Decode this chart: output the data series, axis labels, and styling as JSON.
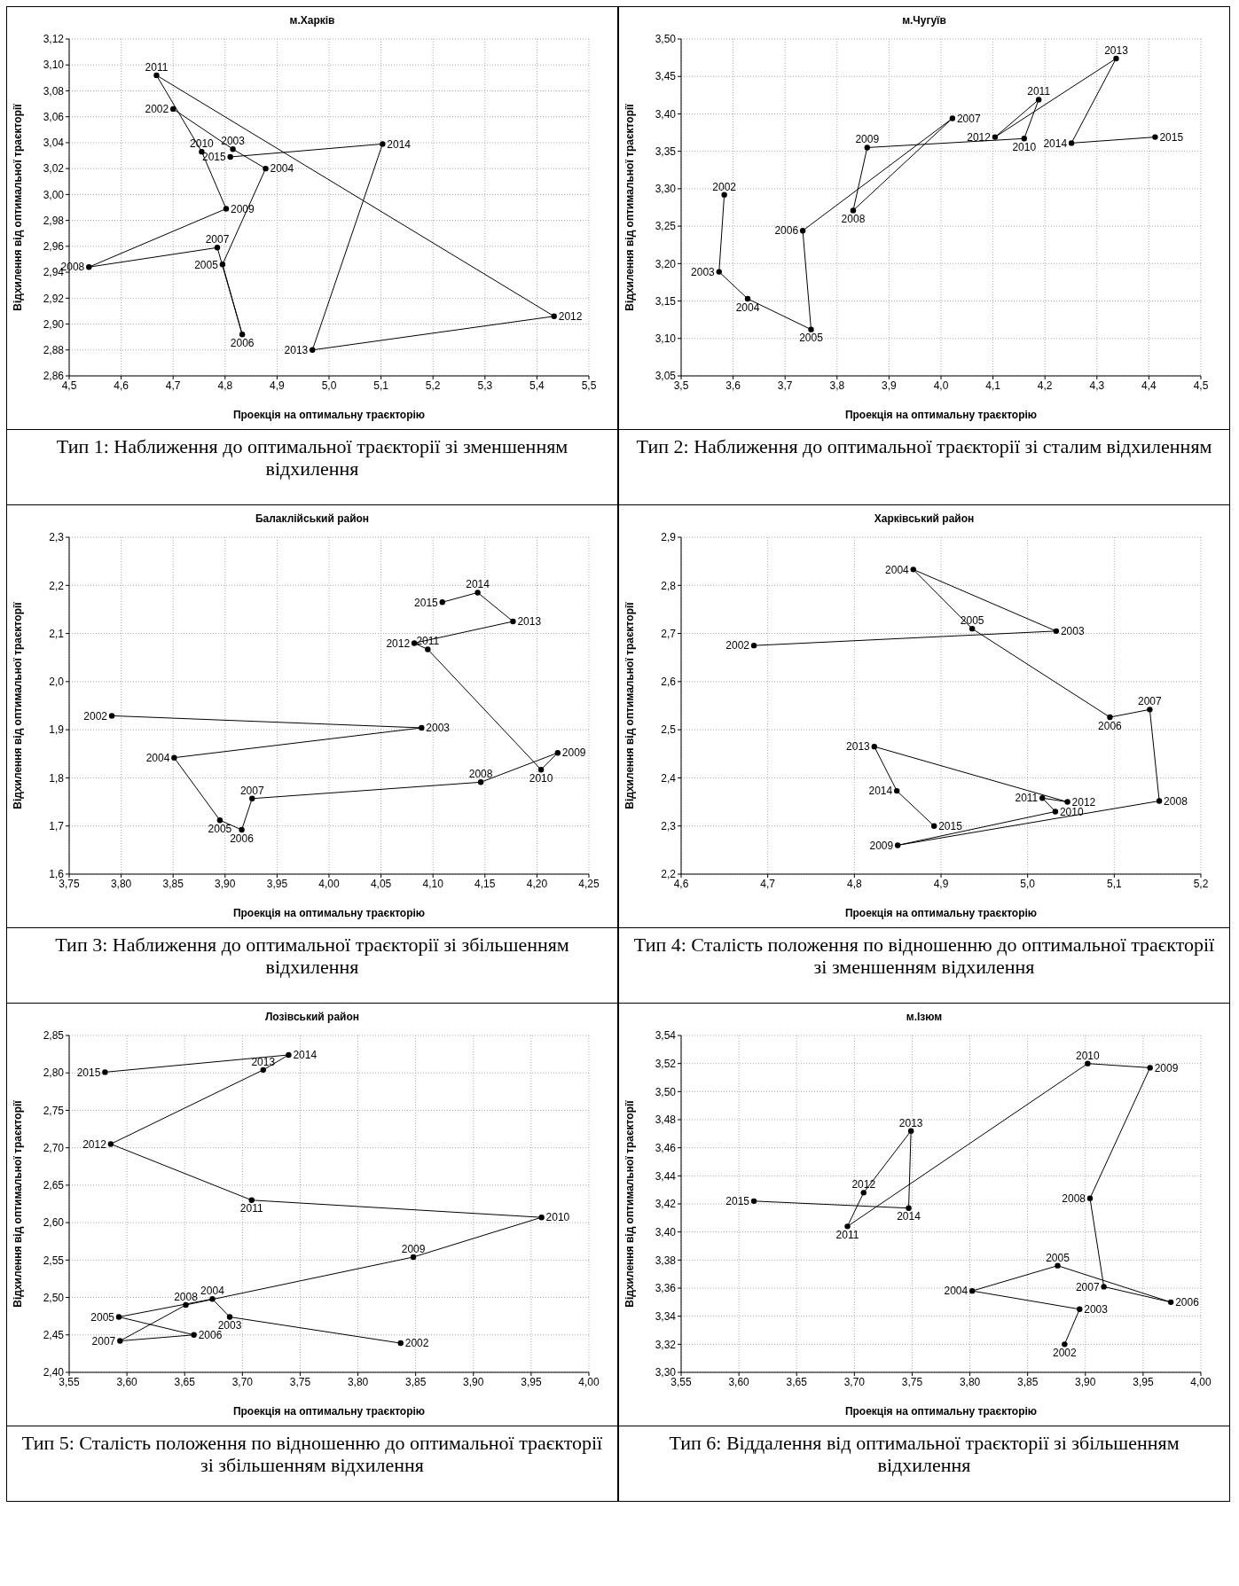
{
  "chart_data": [
    {
      "type": "line",
      "title": "м.Харків",
      "xlabel": "Проекція на оптимальну траєкторію",
      "ylabel": "Відхилення від оптимальної траєкторії",
      "grid": true,
      "marker": "circle",
      "x": [
        4.7,
        4.815,
        4.878,
        4.795,
        4.833,
        4.785,
        4.538,
        4.802,
        4.755,
        4.668,
        5.433,
        4.968,
        5.103,
        4.81
      ],
      "series": [
        {
          "color": "#000000",
          "values": [
            3.066,
            3.035,
            3.02,
            2.946,
            2.892,
            2.959,
            2.944,
            2.989,
            3.033,
            3.092,
            2.906,
            2.88,
            3.039,
            3.029
          ]
        }
      ],
      "xlim": [
        4.5,
        5.5
      ],
      "xticks": [
        {
          "value": 4.5,
          "label": "4,5"
        },
        {
          "value": 4.6,
          "label": "4,6"
        },
        {
          "value": 4.7,
          "label": "4,7"
        },
        {
          "value": 4.8,
          "label": "4,8"
        },
        {
          "value": 4.9,
          "label": "4,9"
        },
        {
          "value": 5.0,
          "label": "5,0"
        },
        {
          "value": 5.1,
          "label": "5,1"
        },
        {
          "value": 5.2,
          "label": "5,2"
        },
        {
          "value": 5.3,
          "label": "5,3"
        },
        {
          "value": 5.4,
          "label": "5,4"
        },
        {
          "value": 5.5,
          "label": "5,5"
        }
      ],
      "ylim": [
        2.86,
        3.12
      ],
      "yticks": [
        {
          "value": 2.86,
          "label": "2,86"
        },
        {
          "value": 2.88,
          "label": "2,88"
        },
        {
          "value": 2.9,
          "label": "2,90"
        },
        {
          "value": 2.92,
          "label": "2,92"
        },
        {
          "value": 2.94,
          "label": "2,94"
        },
        {
          "value": 2.96,
          "label": "2,96"
        },
        {
          "value": 2.98,
          "label": "2,98"
        },
        {
          "value": 3.0,
          "label": "3,00"
        },
        {
          "value": 3.02,
          "label": "3,02"
        },
        {
          "value": 3.04,
          "label": "3,04"
        },
        {
          "value": 3.06,
          "label": "3,06"
        },
        {
          "value": 3.08,
          "label": "3,08"
        },
        {
          "value": 3.1,
          "label": "3,10"
        },
        {
          "value": 3.12,
          "label": "3,12"
        }
      ],
      "annotations": [
        {
          "text": "2002",
          "x": 4.7,
          "y": 3.066
        },
        {
          "text": "2003",
          "x": 4.815,
          "y": 3.035
        },
        {
          "text": "2004",
          "x": 4.878,
          "y": 3.02
        },
        {
          "text": "2005",
          "x": 4.795,
          "y": 2.946
        },
        {
          "text": "2006",
          "x": 4.833,
          "y": 2.892
        },
        {
          "text": "2007",
          "x": 4.785,
          "y": 2.959
        },
        {
          "text": "2008",
          "x": 4.538,
          "y": 2.944
        },
        {
          "text": "2009",
          "x": 4.802,
          "y": 2.989
        },
        {
          "text": "2010",
          "x": 4.755,
          "y": 3.033
        },
        {
          "text": "2011",
          "x": 4.668,
          "y": 3.092
        },
        {
          "text": "2012",
          "x": 5.433,
          "y": 2.906
        },
        {
          "text": "2013",
          "x": 4.968,
          "y": 2.88
        },
        {
          "text": "2014",
          "x": 5.103,
          "y": 3.039
        },
        {
          "text": "2015",
          "x": 4.81,
          "y": 3.029
        },
        "Тип 1: Наближення до оптимальної траєкторії зі зменшенням відхилення"
      ]
    },
    {
      "type": "line",
      "title": "м.Чугуїв",
      "xlabel": "Проекція на оптимальну траєкторію",
      "ylabel": "Відхилення від оптимальної траєкторії",
      "grid": true,
      "marker": "circle",
      "x": [
        3.583,
        3.573,
        3.628,
        3.75,
        3.734,
        4.022,
        3.831,
        3.858,
        4.16,
        4.188,
        4.104,
        4.337,
        4.251,
        4.412
      ],
      "series": [
        {
          "color": "#000000",
          "values": [
            3.292,
            3.189,
            3.153,
            3.112,
            3.244,
            3.394,
            3.271,
            3.355,
            3.367,
            3.419,
            3.369,
            3.474,
            3.361,
            3.369
          ]
        }
      ],
      "xlim": [
        3.5,
        4.5
      ],
      "xticks": [
        {
          "value": 3.5,
          "label": "3,5"
        },
        {
          "value": 3.6,
          "label": "3,6"
        },
        {
          "value": 3.7,
          "label": "3,7"
        },
        {
          "value": 3.8,
          "label": "3,8"
        },
        {
          "value": 3.9,
          "label": "3,9"
        },
        {
          "value": 4.0,
          "label": "4,0"
        },
        {
          "value": 4.1,
          "label": "4,1"
        },
        {
          "value": 4.2,
          "label": "4,2"
        },
        {
          "value": 4.3,
          "label": "4,3"
        },
        {
          "value": 4.4,
          "label": "4,4"
        },
        {
          "value": 4.5,
          "label": "4,5"
        }
      ],
      "ylim": [
        3.05,
        3.5
      ],
      "yticks": [
        {
          "value": 3.05,
          "label": "3,05"
        },
        {
          "value": 3.1,
          "label": "3,10"
        },
        {
          "value": 3.15,
          "label": "3,15"
        },
        {
          "value": 3.2,
          "label": "3,20"
        },
        {
          "value": 3.25,
          "label": "3,25"
        },
        {
          "value": 3.3,
          "label": "3,30"
        },
        {
          "value": 3.35,
          "label": "3,35"
        },
        {
          "value": 3.4,
          "label": "3,40"
        },
        {
          "value": 3.45,
          "label": "3,45"
        },
        {
          "value": 3.5,
          "label": "3,50"
        }
      ],
      "annotations": [
        {
          "text": "2002",
          "x": 3.583,
          "y": 3.292
        },
        {
          "text": "2003",
          "x": 3.573,
          "y": 3.189
        },
        {
          "text": "2004",
          "x": 3.628,
          "y": 3.153
        },
        {
          "text": "2005",
          "x": 3.75,
          "y": 3.112
        },
        {
          "text": "2006",
          "x": 3.734,
          "y": 3.244
        },
        {
          "text": "2007",
          "x": 4.022,
          "y": 3.394
        },
        {
          "text": "2008",
          "x": 3.831,
          "y": 3.271
        },
        {
          "text": "2009",
          "x": 3.858,
          "y": 3.355
        },
        {
          "text": "2010",
          "x": 4.16,
          "y": 3.367
        },
        {
          "text": "2011",
          "x": 4.188,
          "y": 3.419
        },
        {
          "text": "2012",
          "x": 4.104,
          "y": 3.369
        },
        {
          "text": "2013",
          "x": 4.337,
          "y": 3.474
        },
        {
          "text": "2014",
          "x": 4.251,
          "y": 3.361
        },
        {
          "text": "2015",
          "x": 4.412,
          "y": 3.369
        },
        "Тип 2: Наближення до оптимальної траєкторії зі сталим відхиленням"
      ]
    },
    {
      "type": "line",
      "title": "Балаклійський район",
      "xlabel": "Проекція на оптимальну траєкторію",
      "ylabel": "Відхилення від оптимальної траєкторії",
      "grid": true,
      "marker": "circle",
      "x": [
        3.791,
        4.089,
        3.851,
        3.895,
        3.916,
        3.926,
        4.146,
        4.22,
        4.204,
        4.095,
        4.082,
        4.177,
        4.143,
        4.109
      ],
      "series": [
        {
          "color": "#000000",
          "values": [
            1.929,
            1.904,
            1.842,
            1.712,
            1.692,
            1.757,
            1.791,
            1.852,
            1.817,
            2.067,
            2.08,
            2.125,
            2.185,
            2.165
          ]
        }
      ],
      "xlim": [
        3.75,
        4.25
      ],
      "xticks": [
        {
          "value": 3.75,
          "label": "3,75"
        },
        {
          "value": 3.8,
          "label": "3,80"
        },
        {
          "value": 3.85,
          "label": "3,85"
        },
        {
          "value": 3.9,
          "label": "3,90"
        },
        {
          "value": 3.95,
          "label": "3,95"
        },
        {
          "value": 4.0,
          "label": "4,00"
        },
        {
          "value": 4.05,
          "label": "4,05"
        },
        {
          "value": 4.1,
          "label": "4,10"
        },
        {
          "value": 4.15,
          "label": "4,15"
        },
        {
          "value": 4.2,
          "label": "4,20"
        },
        {
          "value": 4.25,
          "label": "4,25"
        }
      ],
      "ylim": [
        1.6,
        2.3
      ],
      "yticks": [
        {
          "value": 1.6,
          "label": "1,6"
        },
        {
          "value": 1.7,
          "label": "1,7"
        },
        {
          "value": 1.8,
          "label": "1,8"
        },
        {
          "value": 1.9,
          "label": "1,9"
        },
        {
          "value": 2.0,
          "label": "2,0"
        },
        {
          "value": 2.1,
          "label": "2,1"
        },
        {
          "value": 2.2,
          "label": "2,2"
        },
        {
          "value": 2.3,
          "label": "2,3"
        }
      ],
      "annotations": [
        {
          "text": "2002",
          "x": 3.791,
          "y": 1.929
        },
        {
          "text": "2003",
          "x": 4.089,
          "y": 1.904
        },
        {
          "text": "2004",
          "x": 3.851,
          "y": 1.842
        },
        {
          "text": "2005",
          "x": 3.895,
          "y": 1.712
        },
        {
          "text": "2006",
          "x": 3.916,
          "y": 1.692
        },
        {
          "text": "2007",
          "x": 3.926,
          "y": 1.757
        },
        {
          "text": "2008",
          "x": 4.146,
          "y": 1.791
        },
        {
          "text": "2009",
          "x": 4.22,
          "y": 1.852
        },
        {
          "text": "2010",
          "x": 4.204,
          "y": 1.817
        },
        {
          "text": "2011",
          "x": 4.095,
          "y": 2.067
        },
        {
          "text": "2012",
          "x": 4.082,
          "y": 2.08
        },
        {
          "text": "2013",
          "x": 4.177,
          "y": 2.125
        },
        {
          "text": "2014",
          "x": 4.143,
          "y": 2.185
        },
        {
          "text": "2015",
          "x": 4.109,
          "y": 2.165
        },
        "Тип 3: Наближення до оптимальної траєкторії зі збільшенням відхилення"
      ]
    },
    {
      "type": "line",
      "title": "Харківський район",
      "xlabel": "Проекція на оптимальну траєкторію",
      "ylabel": "Відхилення від оптимальної траєкторії",
      "grid": true,
      "marker": "circle",
      "x": [
        4.684,
        5.033,
        4.868,
        4.936,
        5.095,
        5.141,
        5.152,
        4.85,
        5.032,
        5.017,
        5.046,
        4.823,
        4.849,
        4.892
      ],
      "series": [
        {
          "color": "#000000",
          "values": [
            2.675,
            2.705,
            2.833,
            2.71,
            2.526,
            2.542,
            2.352,
            2.26,
            2.33,
            2.358,
            2.35,
            2.465,
            2.373,
            2.3
          ]
        }
      ],
      "xlim": [
        4.6,
        5.2
      ],
      "xticks": [
        {
          "value": 4.6,
          "label": "4,6"
        },
        {
          "value": 4.7,
          "label": "4,7"
        },
        {
          "value": 4.8,
          "label": "4,8"
        },
        {
          "value": 4.9,
          "label": "4,9"
        },
        {
          "value": 5.0,
          "label": "5,0"
        },
        {
          "value": 5.1,
          "label": "5,1"
        },
        {
          "value": 5.2,
          "label": "5,2"
        }
      ],
      "ylim": [
        2.2,
        2.9
      ],
      "yticks": [
        {
          "value": 2.2,
          "label": "2,2"
        },
        {
          "value": 2.3,
          "label": "2,3"
        },
        {
          "value": 2.4,
          "label": "2,4"
        },
        {
          "value": 2.5,
          "label": "2,5"
        },
        {
          "value": 2.6,
          "label": "2,6"
        },
        {
          "value": 2.7,
          "label": "2,7"
        },
        {
          "value": 2.8,
          "label": "2,8"
        },
        {
          "value": 2.9,
          "label": "2,9"
        }
      ],
      "annotations": [
        {
          "text": "2002",
          "x": 4.684,
          "y": 2.675
        },
        {
          "text": "2003",
          "x": 5.033,
          "y": 2.705
        },
        {
          "text": "2004",
          "x": 4.868,
          "y": 2.833
        },
        {
          "text": "2005",
          "x": 4.936,
          "y": 2.71
        },
        {
          "text": "2006",
          "x": 5.095,
          "y": 2.526
        },
        {
          "text": "2007",
          "x": 5.141,
          "y": 2.542
        },
        {
          "text": "2008",
          "x": 5.152,
          "y": 2.352
        },
        {
          "text": "2009",
          "x": 4.85,
          "y": 2.26
        },
        {
          "text": "2010",
          "x": 5.032,
          "y": 2.33
        },
        {
          "text": "2011",
          "x": 5.017,
          "y": 2.358
        },
        {
          "text": "2012",
          "x": 5.046,
          "y": 2.35
        },
        {
          "text": "2013",
          "x": 4.823,
          "y": 2.465
        },
        {
          "text": "2014",
          "x": 4.849,
          "y": 2.373
        },
        {
          "text": "2015",
          "x": 4.892,
          "y": 2.3
        },
        "Тип 4: Сталість положення по відношенню до оптимальної траєкторії зі зменшенням відхилення"
      ]
    },
    {
      "type": "line",
      "title": "Лозівський район",
      "xlabel": "Проекція на оптимальну траєкторію",
      "ylabel": "Відхилення від оптимальної траєкторії",
      "grid": true,
      "marker": "circle",
      "x": [
        3.837,
        3.689,
        3.674,
        3.593,
        3.658,
        3.594,
        3.651,
        3.848,
        3.959,
        3.708,
        3.586,
        3.718,
        3.74,
        3.581
      ],
      "series": [
        {
          "color": "#000000",
          "values": [
            2.439,
            2.474,
            2.498,
            2.474,
            2.45,
            2.442,
            2.49,
            2.554,
            2.607,
            2.63,
            2.705,
            2.804,
            2.824,
            2.801
          ]
        }
      ],
      "xlim": [
        3.55,
        4.0
      ],
      "xticks": [
        {
          "value": 3.55,
          "label": "3,55"
        },
        {
          "value": 3.6,
          "label": "3,60"
        },
        {
          "value": 3.65,
          "label": "3,65"
        },
        {
          "value": 3.7,
          "label": "3,70"
        },
        {
          "value": 3.75,
          "label": "3,75"
        },
        {
          "value": 3.8,
          "label": "3,80"
        },
        {
          "value": 3.85,
          "label": "3,85"
        },
        {
          "value": 3.9,
          "label": "3,90"
        },
        {
          "value": 3.95,
          "label": "3,95"
        },
        {
          "value": 4.0,
          "label": "4,00"
        }
      ],
      "ylim": [
        2.4,
        2.85
      ],
      "yticks": [
        {
          "value": 2.4,
          "label": "2,40"
        },
        {
          "value": 2.45,
          "label": "2,45"
        },
        {
          "value": 2.5,
          "label": "2,50"
        },
        {
          "value": 2.55,
          "label": "2,55"
        },
        {
          "value": 2.6,
          "label": "2,60"
        },
        {
          "value": 2.65,
          "label": "2,65"
        },
        {
          "value": 2.7,
          "label": "2,70"
        },
        {
          "value": 2.75,
          "label": "2,75"
        },
        {
          "value": 2.8,
          "label": "2,80"
        },
        {
          "value": 2.85,
          "label": "2,85"
        }
      ],
      "annotations": [
        {
          "text": "2002",
          "x": 3.837,
          "y": 2.439
        },
        {
          "text": "2003",
          "x": 3.689,
          "y": 2.474
        },
        {
          "text": "2004",
          "x": 3.674,
          "y": 2.498
        },
        {
          "text": "2005",
          "x": 3.593,
          "y": 2.474
        },
        {
          "text": "2006",
          "x": 3.658,
          "y": 2.45
        },
        {
          "text": "2007",
          "x": 3.594,
          "y": 2.442
        },
        {
          "text": "2008",
          "x": 3.651,
          "y": 2.49
        },
        {
          "text": "2009",
          "x": 3.848,
          "y": 2.554
        },
        {
          "text": "2010",
          "x": 3.959,
          "y": 2.607
        },
        {
          "text": "2011",
          "x": 3.708,
          "y": 2.63
        },
        {
          "text": "2012",
          "x": 3.586,
          "y": 2.705
        },
        {
          "text": "2013",
          "x": 3.718,
          "y": 2.804
        },
        {
          "text": "2014",
          "x": 3.74,
          "y": 2.824
        },
        {
          "text": "2015",
          "x": 3.581,
          "y": 2.801
        },
        "Тип 5: Сталість положення по відношенню до оптимальної траєкторії зі збільшенням відхилення"
      ]
    },
    {
      "type": "line",
      "title": "м.Ізюм",
      "xlabel": "Проекція на оптимальну траєкторію",
      "ylabel": "Відхилення від оптимальної траєкторії",
      "grid": true,
      "marker": "circle",
      "x": [
        3.882,
        3.895,
        3.802,
        3.876,
        3.974,
        3.916,
        3.904,
        3.956,
        3.902,
        3.694,
        3.708,
        3.749,
        3.747,
        3.613
      ],
      "series": [
        {
          "color": "#000000",
          "values": [
            3.32,
            3.345,
            3.358,
            3.376,
            3.35,
            3.361,
            3.424,
            3.517,
            3.52,
            3.404,
            3.428,
            3.472,
            3.417,
            3.422
          ]
        }
      ],
      "xlim": [
        3.55,
        4.0
      ],
      "xticks": [
        {
          "value": 3.55,
          "label": "3,55"
        },
        {
          "value": 3.6,
          "label": "3,60"
        },
        {
          "value": 3.65,
          "label": "3,65"
        },
        {
          "value": 3.7,
          "label": "3,70"
        },
        {
          "value": 3.75,
          "label": "3,75"
        },
        {
          "value": 3.8,
          "label": "3,80"
        },
        {
          "value": 3.85,
          "label": "3,85"
        },
        {
          "value": 3.9,
          "label": "3,90"
        },
        {
          "value": 3.95,
          "label": "3,95"
        },
        {
          "value": 4.0,
          "label": "4,00"
        }
      ],
      "ylim": [
        3.3,
        3.54
      ],
      "yticks": [
        {
          "value": 3.3,
          "label": "3,30"
        },
        {
          "value": 3.32,
          "label": "3,32"
        },
        {
          "value": 3.34,
          "label": "3,34"
        },
        {
          "value": 3.36,
          "label": "3,36"
        },
        {
          "value": 3.38,
          "label": "3,38"
        },
        {
          "value": 3.4,
          "label": "3,40"
        },
        {
          "value": 3.42,
          "label": "3,42"
        },
        {
          "value": 3.44,
          "label": "3,44"
        },
        {
          "value": 3.46,
          "label": "3,46"
        },
        {
          "value": 3.48,
          "label": "3,48"
        },
        {
          "value": 3.5,
          "label": "3,50"
        },
        {
          "value": 3.52,
          "label": "3,52"
        },
        {
          "value": 3.54,
          "label": "3,54"
        }
      ],
      "annotations": [
        {
          "text": "2002",
          "x": 3.882,
          "y": 3.32
        },
        {
          "text": "2003",
          "x": 3.895,
          "y": 3.345
        },
        {
          "text": "2004",
          "x": 3.802,
          "y": 3.358
        },
        {
          "text": "2005",
          "x": 3.876,
          "y": 3.376
        },
        {
          "text": "2006",
          "x": 3.974,
          "y": 3.35
        },
        {
          "text": "2007",
          "x": 3.916,
          "y": 3.361
        },
        {
          "text": "2008",
          "x": 3.904,
          "y": 3.424
        },
        {
          "text": "2009",
          "x": 3.956,
          "y": 3.517
        },
        {
          "text": "2010",
          "x": 3.902,
          "y": 3.52
        },
        {
          "text": "2011",
          "x": 3.694,
          "y": 3.404
        },
        {
          "text": "2012",
          "x": 3.708,
          "y": 3.428
        },
        {
          "text": "2013",
          "x": 3.749,
          "y": 3.472
        },
        {
          "text": "2014",
          "x": 3.747,
          "y": 3.417
        },
        {
          "text": "2015",
          "x": 3.613,
          "y": 3.422
        },
        "Тип 6: Віддалення від оптимальної траєкторії зі збільшенням відхилення"
      ]
    }
  ]
}
